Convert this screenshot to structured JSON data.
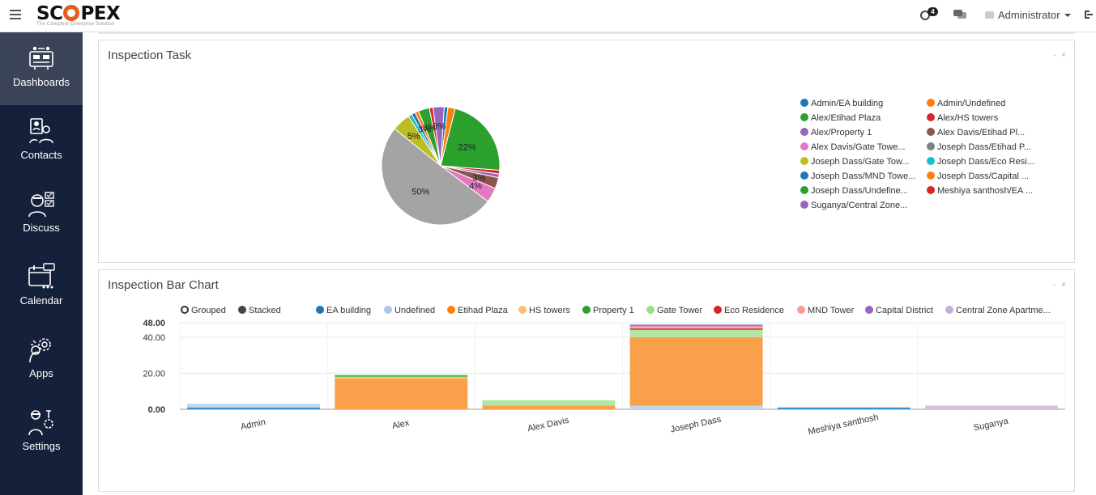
{
  "app": {
    "logo_text_a": "SC",
    "logo_text_b": "PEX",
    "logo_tagline": "The Complete Enterprise Solution",
    "notification_count": "4",
    "user_name": "Administrator"
  },
  "sidebar": {
    "items": [
      {
        "label": "Dashboards",
        "icon": "dashboard-icon"
      },
      {
        "label": "Contacts",
        "icon": "contacts-icon"
      },
      {
        "label": "Discuss",
        "icon": "discuss-icon"
      },
      {
        "label": "Calendar",
        "icon": "calendar-icon"
      },
      {
        "label": "Apps",
        "icon": "apps-icon"
      },
      {
        "label": "Settings",
        "icon": "settings-icon"
      }
    ]
  },
  "pie_panel": {
    "title": "Inspection Task",
    "controls": "- ×"
  },
  "bar_panel": {
    "title": "Inspection Bar Chart",
    "controls": "- ×",
    "modes": [
      "Grouped",
      "Stacked"
    ]
  },
  "chart_data": [
    {
      "type": "pie",
      "title": "Inspection Task",
      "slices": [
        {
          "label": "Admin/EA building",
          "value": 1,
          "color": "#1f77b4"
        },
        {
          "label": "Admin/Undefined",
          "value": 2,
          "color": "#ff7f0e"
        },
        {
          "label": "Alex/Etihad Plaza",
          "value": 22,
          "color": "#2ca02c"
        },
        {
          "label": "Alex/HS towers",
          "value": 1,
          "color": "#d62728"
        },
        {
          "label": "Alex/Property 1",
          "value": 1,
          "color": "#9467bd"
        },
        {
          "label": "Alex Davis/Etihad Pl...",
          "value": 3,
          "color": "#8c564b"
        },
        {
          "label": "Alex Davis/Gate Towe...",
          "value": 4,
          "color": "#e377c2"
        },
        {
          "label": "Joseph Dass/Etihad P...",
          "value": 50,
          "color": "#a4a4a4"
        },
        {
          "label": "Joseph Dass/Gate Tow...",
          "value": 5,
          "color": "#bcbd22"
        },
        {
          "label": "Joseph Dass/Eco Resi...",
          "value": 1,
          "color": "#17becf"
        },
        {
          "label": "Joseph Dass/MND Towe...",
          "value": 1,
          "color": "#1f77b4"
        },
        {
          "label": "Joseph Dass/Capital ...",
          "value": 1,
          "color": "#ff7f0e"
        },
        {
          "label": "Joseph Dass/Undefine...",
          "value": 3,
          "color": "#2ca02c"
        },
        {
          "label": "Meshiya santhosh/EA ...",
          "value": 1,
          "color": "#d62728"
        },
        {
          "label": "Suganya/Central Zone...",
          "value": 3,
          "color": "#9467bd"
        }
      ],
      "slice_labels": [
        "22%",
        "3%",
        "4%",
        "50%",
        "5%",
        "3%",
        "3%",
        "3%"
      ],
      "legend_colors": [
        "#1f77b4",
        "#ff7f0e",
        "#2ca02c",
        "#d62728",
        "#9467bd",
        "#8c564b",
        "#e377c2",
        "#7f7f7f",
        "#bcbd22",
        "#17becf",
        "#1f77b4",
        "#ff7f0e",
        "#2ca02c",
        "#d62728",
        "#9467bd"
      ]
    },
    {
      "type": "bar",
      "stacked": true,
      "title": "Inspection Bar Chart",
      "categories": [
        "Admin",
        "Alex",
        "Alex Davis",
        "Joseph Dass",
        "Meshiya santhosh",
        "Suganya"
      ],
      "ylim": [
        0,
        48
      ],
      "ytick_labels": [
        "0.00",
        "20.00",
        "40.00",
        "48.00"
      ],
      "ytick_values": [
        0,
        20,
        40,
        48
      ],
      "series": [
        {
          "name": "EA building",
          "color": "#1f77b4",
          "bar_color": "#3a8fd1",
          "values": [
            1,
            0,
            0,
            0,
            1,
            0
          ]
        },
        {
          "name": "Undefined",
          "color": "#aec7e8",
          "bar_color": "#c3d5ec",
          "values": [
            2,
            0,
            0,
            2,
            0,
            0
          ]
        },
        {
          "name": "Etihad Plaza",
          "color": "#ff7f0e",
          "bar_color": "#fba04a",
          "values": [
            0,
            17,
            2,
            38,
            0,
            0
          ]
        },
        {
          "name": "HS towers",
          "color": "#ffbb78",
          "bar_color": "#ffbb78",
          "values": [
            0,
            1,
            0,
            0,
            0,
            0
          ]
        },
        {
          "name": "Property 1",
          "color": "#2ca02c",
          "bar_color": "#53b553",
          "values": [
            0,
            1,
            0,
            0,
            0,
            0
          ]
        },
        {
          "name": "Gate Tower",
          "color": "#98df8a",
          "bar_color": "#b2e6a5",
          "values": [
            0,
            0,
            3,
            4,
            0,
            0
          ]
        },
        {
          "name": "Eco Residence",
          "color": "#d62728",
          "bar_color": "#d94a4a",
          "values": [
            0,
            0,
            0,
            1,
            0,
            0
          ]
        },
        {
          "name": "MND Tower",
          "color": "#ff9896",
          "bar_color": "#ffaaa8",
          "values": [
            0,
            0,
            0,
            1,
            0,
            0
          ]
        },
        {
          "name": "Capital District",
          "color": "#9467bd",
          "bar_color": "#a27cc8",
          "values": [
            0,
            0,
            0,
            1,
            0,
            0
          ]
        },
        {
          "name": "Central Zone Apartme...",
          "color": "#c5b0d5",
          "bar_color": "#d2c2de",
          "values": [
            0,
            0,
            0,
            0,
            0,
            2
          ]
        }
      ]
    }
  ]
}
